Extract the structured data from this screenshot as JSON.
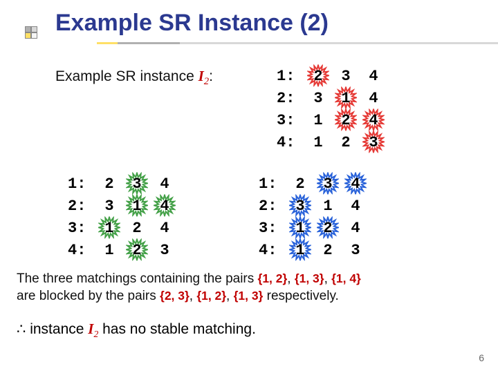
{
  "title": "Example SR Instance (2)",
  "subheading_prefix": "Example SR instance ",
  "subheading_var": "I",
  "subheading_sub": "2",
  "subheading_colon": ":",
  "star_colors": {
    "red": "#e53935",
    "green": "#43a047",
    "blue": "#2962d9"
  },
  "tables": {
    "topright": {
      "rows": [
        {
          "label": "1:",
          "cells": [
            {
              "v": "2",
              "star": "red"
            },
            {
              "v": "3"
            },
            {
              "v": "4"
            }
          ]
        },
        {
          "label": "2:",
          "cells": [
            {
              "v": "3"
            },
            {
              "v": "1",
              "star": "red"
            },
            {
              "v": "4"
            }
          ]
        },
        {
          "label": "3:",
          "cells": [
            {
              "v": "1"
            },
            {
              "v": "2",
              "star": "red"
            },
            {
              "v": "4",
              "star": "red"
            }
          ]
        },
        {
          "label": "4:",
          "cells": [
            {
              "v": "1"
            },
            {
              "v": "2"
            },
            {
              "v": "3",
              "star": "red"
            }
          ]
        }
      ]
    },
    "botleft": {
      "rows": [
        {
          "label": "1:",
          "cells": [
            {
              "v": "2"
            },
            {
              "v": "3",
              "star": "green"
            },
            {
              "v": "4"
            }
          ]
        },
        {
          "label": "2:",
          "cells": [
            {
              "v": "3"
            },
            {
              "v": "1",
              "star": "green"
            },
            {
              "v": "4",
              "star": "green"
            }
          ]
        },
        {
          "label": "3:",
          "cells": [
            {
              "v": "1",
              "star": "green"
            },
            {
              "v": "2"
            },
            {
              "v": "4"
            }
          ]
        },
        {
          "label": "4:",
          "cells": [
            {
              "v": "1"
            },
            {
              "v": "2",
              "star": "green"
            },
            {
              "v": "3"
            }
          ]
        }
      ]
    },
    "botright": {
      "rows": [
        {
          "label": "1:",
          "cells": [
            {
              "v": "2"
            },
            {
              "v": "3",
              "star": "blue"
            },
            {
              "v": "4",
              "star": "blue"
            }
          ]
        },
        {
          "label": "2:",
          "cells": [
            {
              "v": "3",
              "star": "blue"
            },
            {
              "v": "1"
            },
            {
              "v": "4"
            }
          ]
        },
        {
          "label": "3:",
          "cells": [
            {
              "v": "1",
              "star": "blue"
            },
            {
              "v": "2",
              "star": "blue"
            },
            {
              "v": "4"
            }
          ]
        },
        {
          "label": "4:",
          "cells": [
            {
              "v": "1",
              "star": "blue"
            },
            {
              "v": "2"
            },
            {
              "v": "3"
            }
          ]
        }
      ]
    }
  },
  "explain_parts": {
    "t1": "The three matchings containing the pairs ",
    "p1": "{1, 2}",
    "c1": ", ",
    "p2": "{1, 3}",
    "c2": ", ",
    "p3": "{1, 4}",
    "t2": " are blocked by the pairs ",
    "p4": "{2, 3}",
    "c3": ", ",
    "p5": "{1, 2}",
    "c4": ", ",
    "p6": "{1, 3}",
    "t3": " respectively."
  },
  "conclude_parts": {
    "sym": "∴",
    "t1": "  instance ",
    "var": "I",
    "sub": "2",
    "t2": " has no stable matching."
  },
  "pagenum": "6"
}
